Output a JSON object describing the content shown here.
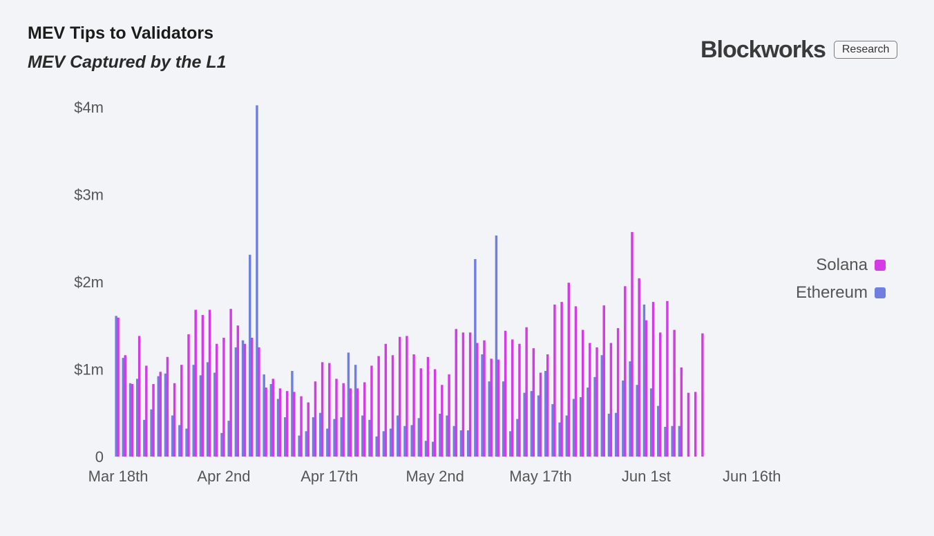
{
  "header": {
    "title": "MEV Tips to Validators",
    "subtitle": "MEV Captured by the L1"
  },
  "brand": {
    "logo_text": "Blockworks",
    "badge": "Research"
  },
  "colors": {
    "solana": "#d63ae6",
    "ethereum": "#6e7fe0",
    "background": "#f3f4f7"
  },
  "chart_data": {
    "type": "bar",
    "ylabel": "",
    "xlabel": "",
    "ylim": [
      0,
      4000000
    ],
    "yticks": [
      {
        "value": 0,
        "label": "0"
      },
      {
        "value": 1000000,
        "label": "$1m"
      },
      {
        "value": 2000000,
        "label": "$2m"
      },
      {
        "value": 3000000,
        "label": "$3m"
      },
      {
        "value": 4000000,
        "label": "$4m"
      }
    ],
    "xticks": [
      {
        "index": 0,
        "label": "Mar 18th"
      },
      {
        "index": 15,
        "label": "Apr 2nd"
      },
      {
        "index": 30,
        "label": "Apr 17th"
      },
      {
        "index": 45,
        "label": "May 2nd"
      },
      {
        "index": 60,
        "label": "May 17th"
      },
      {
        "index": 75,
        "label": "Jun 1st"
      },
      {
        "index": 90,
        "label": "Jun 16th"
      }
    ],
    "start_date": "Mar 18th",
    "legend": "right",
    "series": [
      {
        "name": "Solana",
        "color": "#d63ae6",
        "values": [
          1590000,
          1160000,
          830000,
          1380000,
          1040000,
          830000,
          970000,
          1140000,
          840000,
          1050000,
          1400000,
          1680000,
          1620000,
          1680000,
          1290000,
          1360000,
          1690000,
          1500000,
          1290000,
          1360000,
          1250000,
          790000,
          890000,
          780000,
          750000,
          740000,
          690000,
          620000,
          860000,
          1080000,
          1070000,
          890000,
          840000,
          780000,
          780000,
          850000,
          1040000,
          1150000,
          1290000,
          1160000,
          1370000,
          1380000,
          1170000,
          1010000,
          1140000,
          1000000,
          820000,
          940000,
          1460000,
          1420000,
          1420000,
          1300000,
          1330000,
          1120000,
          1110000,
          1440000,
          1340000,
          1290000,
          1480000,
          1240000,
          960000,
          1170000,
          1740000,
          1770000,
          1990000,
          1720000,
          1450000,
          1300000,
          1250000,
          1730000,
          1300000,
          1470000,
          1950000,
          2570000,
          2040000,
          1560000,
          1770000,
          1420000,
          1780000,
          1450000,
          1020000,
          730000,
          740000,
          1410000
        ]
      },
      {
        "name": "Ethereum",
        "color": "#6e7fe0",
        "values": [
          1610000,
          1130000,
          840000,
          890000,
          420000,
          540000,
          920000,
          950000,
          470000,
          360000,
          320000,
          1050000,
          930000,
          1080000,
          960000,
          270000,
          410000,
          1250000,
          1330000,
          2310000,
          4020000,
          940000,
          830000,
          660000,
          450000,
          980000,
          240000,
          290000,
          450000,
          500000,
          320000,
          430000,
          450000,
          1190000,
          1050000,
          470000,
          420000,
          230000,
          290000,
          320000,
          470000,
          350000,
          360000,
          440000,
          180000,
          170000,
          490000,
          470000,
          350000,
          300000,
          300000,
          2260000,
          1170000,
          860000,
          2530000,
          860000,
          290000,
          430000,
          730000,
          750000,
          700000,
          980000,
          600000,
          390000,
          470000,
          660000,
          680000,
          790000,
          910000,
          1160000,
          490000,
          500000,
          870000,
          1090000,
          820000,
          1740000,
          780000,
          580000,
          340000,
          350000,
          350000
        ]
      }
    ]
  }
}
